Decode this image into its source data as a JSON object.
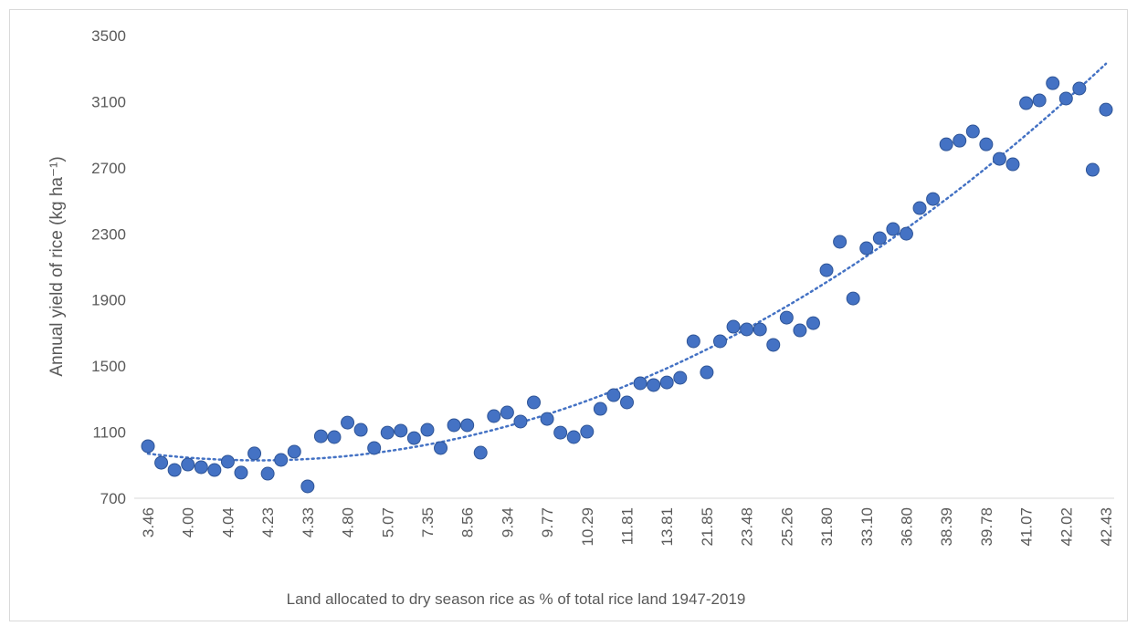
{
  "chart_data": {
    "type": "scatter",
    "xlabel": "Land allocated to dry season rice as % of total rice land 1947-2019",
    "ylabel": "Annual yield of rice (kg ha⁻¹)",
    "categories": [
      "3.46",
      null,
      null,
      "4.00",
      null,
      null,
      "4.04",
      null,
      null,
      "4.23",
      null,
      null,
      "4.33",
      null,
      null,
      "4.80",
      null,
      null,
      "5.07",
      null,
      null,
      "7.35",
      null,
      null,
      "8.56",
      null,
      null,
      "9.34",
      null,
      null,
      "9.77",
      null,
      null,
      "10.29",
      null,
      null,
      "11.81",
      null,
      null,
      "13.81",
      null,
      null,
      "21.85",
      null,
      null,
      "23.48",
      null,
      null,
      "25.26",
      null,
      null,
      "31.80",
      null,
      null,
      "33.10",
      null,
      null,
      "36.80",
      null,
      null,
      "38.39",
      null,
      null,
      "39.78",
      null,
      null,
      "41.07",
      null,
      null,
      "42.02",
      null,
      null,
      "42.43"
    ],
    "values": [
      1015,
      915,
      871,
      904,
      888,
      871,
      921,
      855,
      971,
      849,
      932,
      982,
      772,
      1075,
      1070,
      1158,
      1114,
      1004,
      1097,
      1109,
      1064,
      1114,
      1004,
      1142,
      1142,
      976,
      1197,
      1219,
      1164,
      1280,
      1180,
      1097,
      1070,
      1103,
      1241,
      1324,
      1280,
      1396,
      1385,
      1401,
      1429,
      1650,
      1462,
      1650,
      1738,
      1722,
      1722,
      1628,
      1793,
      1716,
      1760,
      2080,
      2252,
      1909,
      2213,
      2274,
      2329,
      2301,
      2456,
      2511,
      2842,
      2864,
      2920,
      2842,
      2754,
      2721,
      3091,
      3108,
      3212,
      3119,
      3180,
      2688,
      3052
    ],
    "color": "#4472c4",
    "trendline": "polynomial",
    "ylim": [
      700,
      3500
    ],
    "yticks": [
      700,
      1100,
      1500,
      1900,
      2300,
      2700,
      3100,
      3500
    ],
    "grid": false
  }
}
